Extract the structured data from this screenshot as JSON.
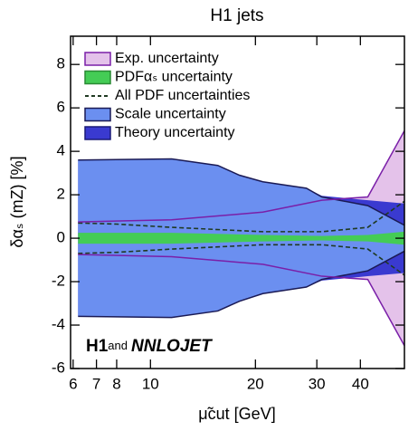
{
  "chart_data": {
    "type": "band",
    "title": "H1 jets",
    "x_label": "μ̃cut [GeV]",
    "y_label": "δαₛ (mZ) [%]",
    "log_x": true,
    "xlim": [
      5.9,
      53.5
    ],
    "ylim": [
      -6,
      9.3
    ],
    "xticks": [
      6,
      7,
      8,
      10,
      20,
      30,
      40
    ],
    "yticks": [
      -6,
      -4,
      -2,
      0,
      2,
      4,
      6,
      8
    ],
    "legend": "upper left",
    "annotation": {
      "main": "H1",
      "joiner": "and",
      "partner": "NNLOJET"
    },
    "series": [
      {
        "name": "Exp. uncertainty",
        "style": "band",
        "color": "#e4c2ea",
        "edge": "#7a1fa8",
        "x": [
          6.2,
          11.5,
          21,
          31,
          42,
          53.5
        ],
        "upper": [
          0.75,
          0.85,
          1.2,
          1.75,
          1.9,
          4.95
        ],
        "lower": [
          -0.75,
          -0.85,
          -1.2,
          -1.75,
          -1.9,
          -4.95
        ]
      },
      {
        "name": "PDFαₛ uncertainty",
        "style": "band",
        "color": "#44cc55",
        "edge": "#2a8a35",
        "x": [
          6.2,
          11.5,
          21,
          31,
          42,
          53.5
        ],
        "upper": [
          0.25,
          0.25,
          0.15,
          0.1,
          0.15,
          0.3
        ],
        "lower": [
          -0.25,
          -0.25,
          -0.15,
          -0.1,
          -0.15,
          -0.3
        ]
      },
      {
        "name": "All PDF uncertainties",
        "style": "dashed",
        "color": "#1f3a22",
        "x": [
          6.2,
          8,
          11.5,
          21,
          31,
          42,
          53.5
        ],
        "upper": [
          0.7,
          0.65,
          0.5,
          0.3,
          0.3,
          0.5,
          1.7
        ],
        "lower": [
          -0.7,
          -0.65,
          -0.5,
          -0.3,
          -0.3,
          -0.5,
          -1.7
        ]
      },
      {
        "name": "Scale uncertainty",
        "style": "band",
        "color": "#6b8ff0",
        "edge": "#1a1a55",
        "x": [
          6.2,
          11.5,
          15.6,
          18,
          21,
          28,
          31,
          42,
          53.5
        ],
        "upper": [
          3.6,
          3.65,
          3.35,
          2.9,
          2.6,
          2.3,
          1.9,
          1.5,
          0.6
        ],
        "lower": [
          -3.6,
          -3.65,
          -3.35,
          -2.9,
          -2.55,
          -2.25,
          -1.9,
          -1.5,
          -0.6
        ]
      },
      {
        "name": "Theory uncertainty",
        "style": "band",
        "color": "#3a3ad0",
        "edge": "#1a1a77",
        "x": [
          6.2,
          11.5,
          15.6,
          18,
          21,
          28,
          31,
          42,
          53.5
        ],
        "upper": [
          3.6,
          3.65,
          3.35,
          2.9,
          2.6,
          2.3,
          1.95,
          1.75,
          1.6
        ],
        "lower": [
          -3.6,
          -3.65,
          -3.35,
          -2.9,
          -2.55,
          -2.25,
          -1.95,
          -1.75,
          -1.6
        ]
      }
    ]
  }
}
